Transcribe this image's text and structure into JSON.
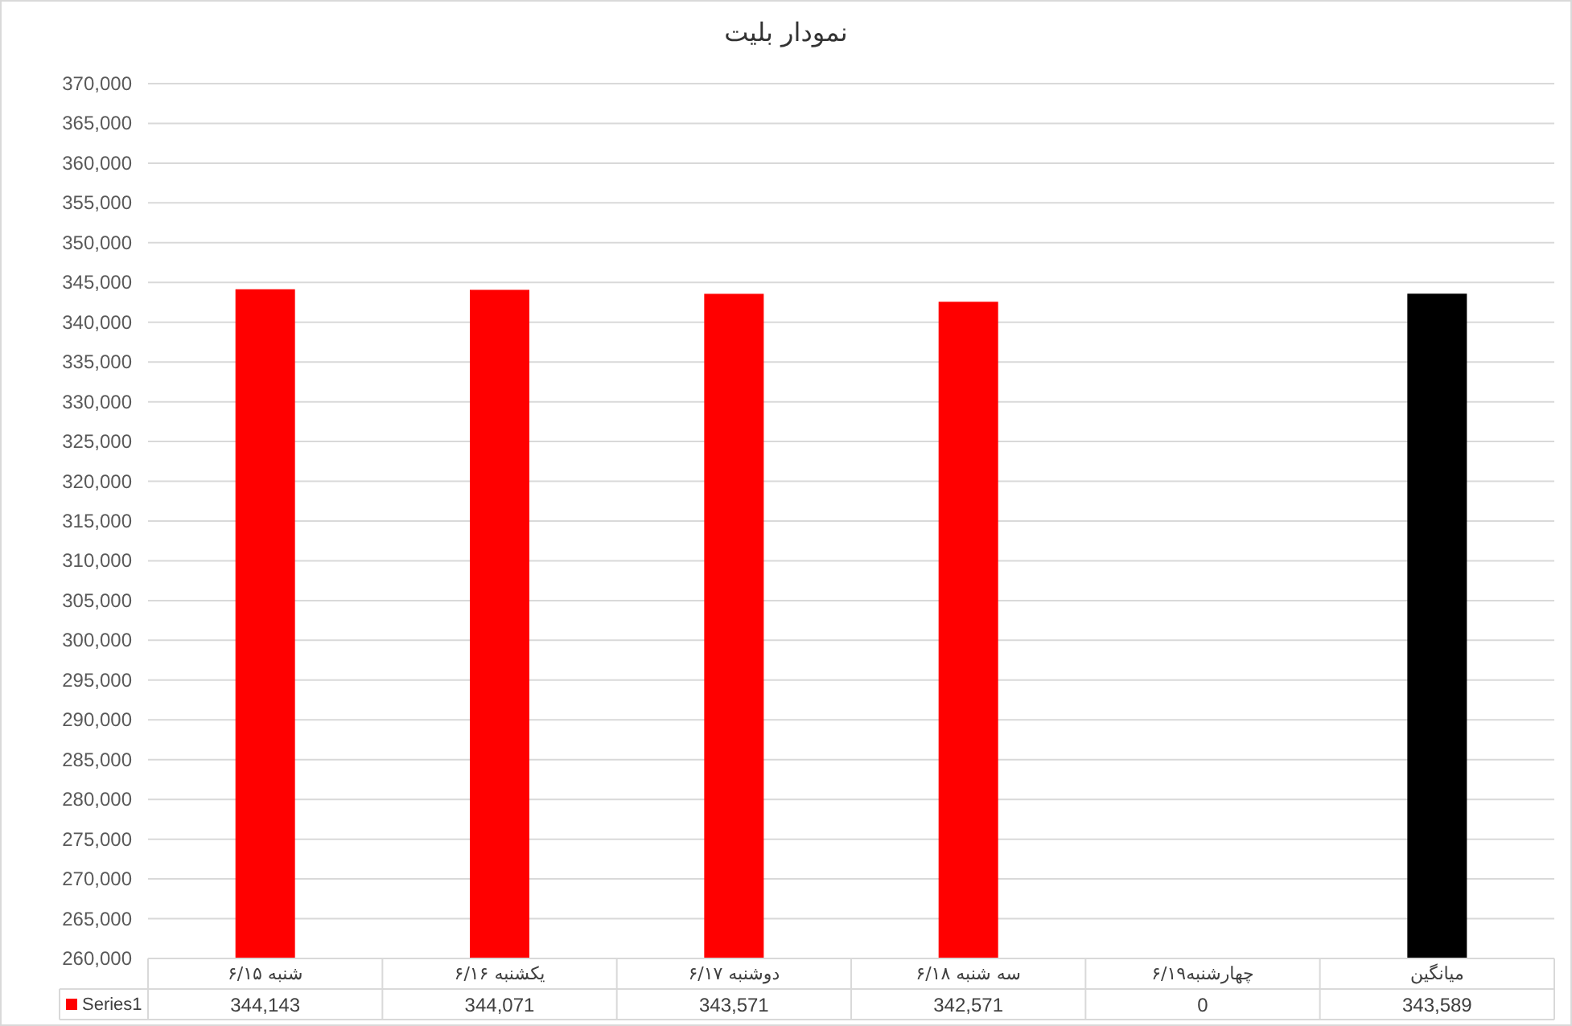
{
  "chart_data": {
    "type": "bar",
    "title": "نمودار بلیت",
    "categories": [
      "شنبه ۶/۱۵",
      "یکشنبه ۶/۱۶",
      "دوشنبه ۶/۱۷",
      "سه شنبه ۶/۱۸",
      "چهارشنبه۶/۱۹",
      "میانگین"
    ],
    "series": [
      {
        "name": "Series1",
        "color": "#ff0000",
        "colors": [
          "#ff0000",
          "#ff0000",
          "#ff0000",
          "#ff0000",
          null,
          "#000000"
        ],
        "values": [
          344143,
          344071,
          343571,
          342571,
          null,
          343589
        ],
        "value_labels": [
          "344,143",
          "344,071",
          "343,571",
          "342,571",
          "0",
          "343,589"
        ]
      }
    ],
    "ylim": [
      260000,
      370000
    ],
    "yticks": [
      {
        "value": 260000,
        "label": "260,000"
      },
      {
        "value": 265000,
        "label": "265,000"
      },
      {
        "value": 270000,
        "label": "270,000"
      },
      {
        "value": 275000,
        "label": "275,000"
      },
      {
        "value": 280000,
        "label": "280,000"
      },
      {
        "value": 285000,
        "label": "285,000"
      },
      {
        "value": 290000,
        "label": "290,000"
      },
      {
        "value": 295000,
        "label": "295,000"
      },
      {
        "value": 300000,
        "label": "300,000"
      },
      {
        "value": 305000,
        "label": "305,000"
      },
      {
        "value": 310000,
        "label": "310,000"
      },
      {
        "value": 315000,
        "label": "315,000"
      },
      {
        "value": 320000,
        "label": "320,000"
      },
      {
        "value": 325000,
        "label": "325,000"
      },
      {
        "value": 330000,
        "label": "330,000"
      },
      {
        "value": 335000,
        "label": "335,000"
      },
      {
        "value": 340000,
        "label": "340,000"
      },
      {
        "value": 345000,
        "label": "345,000"
      },
      {
        "value": 350000,
        "label": "350,000"
      },
      {
        "value": 355000,
        "label": "355,000"
      },
      {
        "value": 360000,
        "label": "360,000"
      },
      {
        "value": 365000,
        "label": "365,000"
      },
      {
        "value": 370000,
        "label": "370,000"
      }
    ],
    "grid": "y",
    "legend": "bottom"
  }
}
